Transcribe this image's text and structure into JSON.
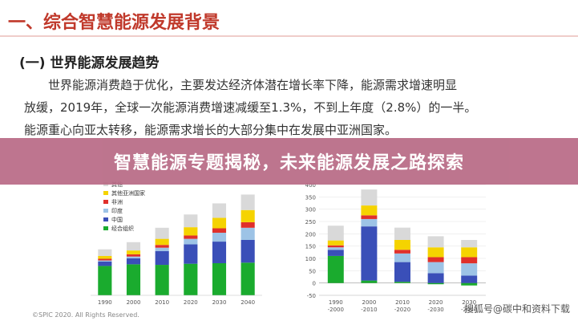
{
  "slide": {
    "title": "一、综合智慧能源发展背景",
    "section": "(一) 世界能源发展趋势",
    "paragraph_lines": [
      "世界能源消费趋于优化，主要发达经济体潜在增长率下降，能源需求增速明显",
      "放缓，2019年，全球一次能源消费增速减缓至1.3%，不到上年度（2.8%）的一半。",
      "能源重心向亚太转移，能源需求增长的大部分集中在发展中亚洲国家。"
    ]
  },
  "banner": {
    "text": "智慧能源专题揭秘，未来能源发展之路探索",
    "color": "#b96b86"
  },
  "footer": {
    "source": "©SPIC 2020. All Rights Reserved.",
    "watermark": "搜狐号@碳中和资料下载"
  },
  "colors": {
    "其他": "#d9d9d9",
    "其他亚洲国家": "#f5d300",
    "非洲": "#e0302b",
    "印度": "#9dc3e6",
    "中国": "#3a4fb8",
    "经合组织": "#1aab2e"
  },
  "chart_data": [
    {
      "type": "bar",
      "stacked": true,
      "title": "",
      "xlabel": "",
      "ylabel": "",
      "categories": [
        "1990",
        "2000",
        "2010",
        "2020",
        "2030",
        "2040"
      ],
      "legend": [
        "其他",
        "其他亚洲国家",
        "非洲",
        "印度",
        "中国",
        "经合组织"
      ],
      "legend_position": "top-left",
      "ylim": [
        0,
        20000
      ],
      "yticks": [],
      "series": [
        {
          "name": "经合组织",
          "values": [
            5300,
            5600,
            5500,
            5700,
            5800,
            5900
          ]
        },
        {
          "name": "中国",
          "values": [
            800,
            1100,
            2500,
            3500,
            3900,
            4100
          ]
        },
        {
          "name": "印度",
          "values": [
            200,
            300,
            600,
            1000,
            1600,
            2200
          ]
        },
        {
          "name": "非洲",
          "values": [
            300,
            400,
            500,
            600,
            800,
            1000
          ]
        },
        {
          "name": "其他亚洲国家",
          "values": [
            500,
            700,
            1100,
            1500,
            1900,
            2200
          ]
        },
        {
          "name": "其他",
          "values": [
            1200,
            1500,
            2000,
            2300,
            2600,
            2800
          ]
        }
      ]
    },
    {
      "type": "bar",
      "stacked": true,
      "title": "",
      "xlabel": "",
      "ylabel": "",
      "categories": [
        "1990\n-2000",
        "2000\n-2010",
        "2010\n-2020",
        "2020\n-2030",
        "2030\n-2040"
      ],
      "ylim": [
        -50,
        400
      ],
      "yticks": [
        -50,
        0,
        50,
        100,
        150,
        200,
        250,
        300,
        350,
        400
      ],
      "series": [
        {
          "name": "经合组织",
          "values": [
            110,
            10,
            5,
            -5,
            -10
          ]
        },
        {
          "name": "中国",
          "values": [
            25,
            220,
            80,
            40,
            30
          ]
        },
        {
          "name": "印度",
          "values": [
            10,
            30,
            35,
            45,
            50
          ]
        },
        {
          "name": "非洲",
          "values": [
            8,
            15,
            15,
            20,
            25
          ]
        },
        {
          "name": "其他亚洲国家",
          "values": [
            20,
            40,
            40,
            40,
            40
          ]
        },
        {
          "name": "其他",
          "values": [
            60,
            65,
            50,
            45,
            30
          ]
        }
      ]
    }
  ]
}
